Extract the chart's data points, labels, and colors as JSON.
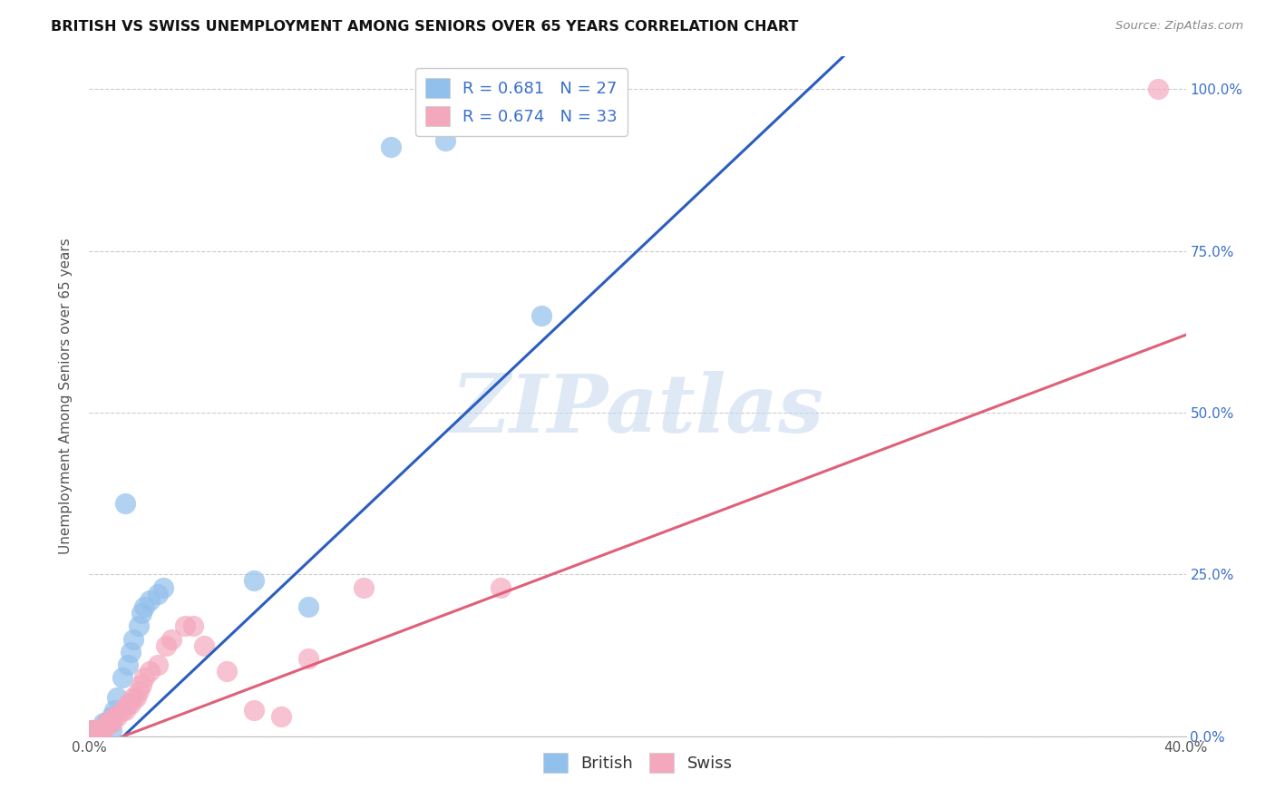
{
  "title": "BRITISH VS SWISS UNEMPLOYMENT AMONG SENIORS OVER 65 YEARS CORRELATION CHART",
  "source": "Source: ZipAtlas.com",
  "ylabel": "Unemployment Among Seniors over 65 years",
  "ytick_labels": [
    "0.0%",
    "25.0%",
    "50.0%",
    "75.0%",
    "100.0%"
  ],
  "ytick_values": [
    0.0,
    0.25,
    0.5,
    0.75,
    1.0
  ],
  "xmin": 0.0,
  "xmax": 0.4,
  "ymin": 0.0,
  "ymax": 1.05,
  "watermark_text": "ZIPatlas",
  "british_color": "#92C0EC",
  "swiss_color": "#F4A8BE",
  "british_line_color": "#2B5EBF",
  "swiss_line_color": "#E0607A",
  "british_R": 0.681,
  "british_N": 27,
  "swiss_R": 0.674,
  "swiss_N": 33,
  "british_line": [
    0.0,
    -0.05,
    0.28,
    1.05
  ],
  "swiss_line": [
    0.0,
    -0.02,
    0.4,
    0.62
  ],
  "british_points": [
    [
      0.001,
      0.01
    ],
    [
      0.002,
      0.01
    ],
    [
      0.003,
      0.01
    ],
    [
      0.004,
      0.01
    ],
    [
      0.005,
      0.02
    ],
    [
      0.006,
      0.02
    ],
    [
      0.007,
      0.02
    ],
    [
      0.008,
      0.03
    ],
    [
      0.009,
      0.04
    ],
    [
      0.01,
      0.06
    ],
    [
      0.012,
      0.09
    ],
    [
      0.014,
      0.11
    ],
    [
      0.015,
      0.13
    ],
    [
      0.016,
      0.15
    ],
    [
      0.018,
      0.17
    ],
    [
      0.019,
      0.19
    ],
    [
      0.02,
      0.2
    ],
    [
      0.022,
      0.21
    ],
    [
      0.025,
      0.22
    ],
    [
      0.027,
      0.23
    ],
    [
      0.06,
      0.24
    ],
    [
      0.08,
      0.2
    ],
    [
      0.11,
      0.91
    ],
    [
      0.13,
      0.92
    ],
    [
      0.165,
      0.65
    ],
    [
      0.013,
      0.36
    ],
    [
      0.008,
      0.01
    ]
  ],
  "swiss_points": [
    [
      0.001,
      0.01
    ],
    [
      0.002,
      0.01
    ],
    [
      0.003,
      0.01
    ],
    [
      0.004,
      0.01
    ],
    [
      0.005,
      0.01
    ],
    [
      0.006,
      0.02
    ],
    [
      0.007,
      0.02
    ],
    [
      0.008,
      0.02
    ],
    [
      0.009,
      0.03
    ],
    [
      0.01,
      0.03
    ],
    [
      0.012,
      0.04
    ],
    [
      0.013,
      0.04
    ],
    [
      0.014,
      0.05
    ],
    [
      0.015,
      0.05
    ],
    [
      0.016,
      0.06
    ],
    [
      0.017,
      0.06
    ],
    [
      0.018,
      0.07
    ],
    [
      0.019,
      0.08
    ],
    [
      0.02,
      0.09
    ],
    [
      0.022,
      0.1
    ],
    [
      0.025,
      0.11
    ],
    [
      0.028,
      0.14
    ],
    [
      0.03,
      0.15
    ],
    [
      0.035,
      0.17
    ],
    [
      0.038,
      0.17
    ],
    [
      0.042,
      0.14
    ],
    [
      0.05,
      0.1
    ],
    [
      0.06,
      0.04
    ],
    [
      0.07,
      0.03
    ],
    [
      0.08,
      0.12
    ],
    [
      0.1,
      0.23
    ],
    [
      0.15,
      0.23
    ],
    [
      0.39,
      1.0
    ]
  ]
}
